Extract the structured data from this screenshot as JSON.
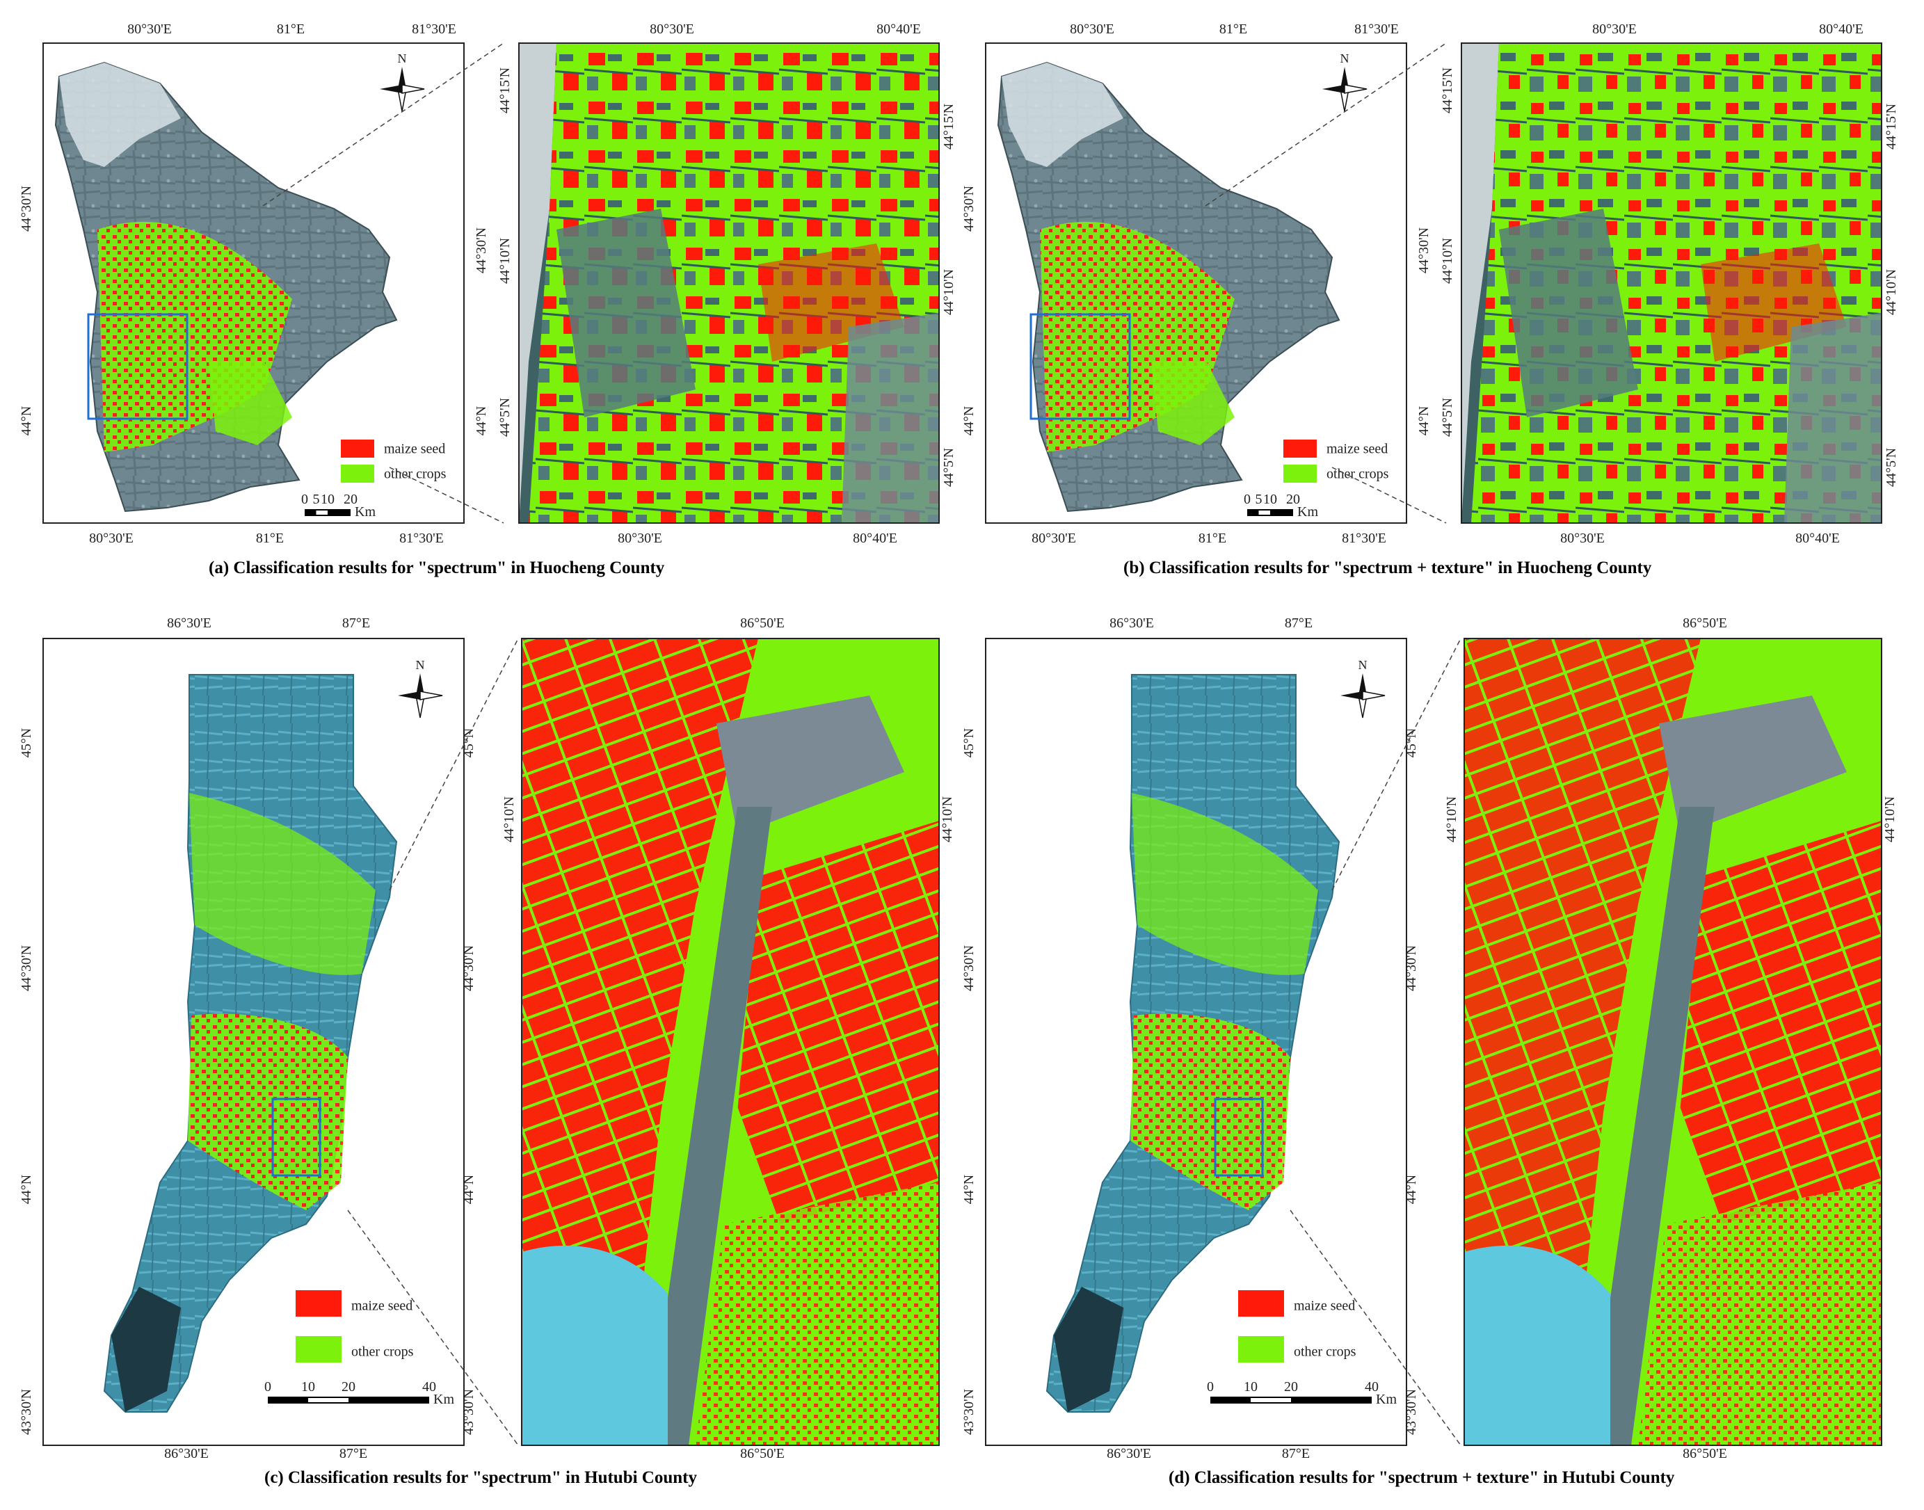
{
  "legend": {
    "maize_seed": "maize seed",
    "other_crops": "other crops"
  },
  "colors": {
    "maize": "#ff1a0a",
    "other": "#7cf20c"
  },
  "north_label": "N",
  "panels": [
    {
      "id": "a",
      "caption": "(a) Classification results for \"spectrum\" in Huocheng County",
      "overview": {
        "top_ticks": [
          "80°30'E",
          "81°E",
          "81°30'E"
        ],
        "bottom_ticks": [
          "80°30'E",
          "81°E",
          "81°30'E"
        ],
        "left_ticks": [
          "44°30'N",
          "44°N"
        ],
        "right_ticks": [
          "44°30'N",
          "44°N"
        ],
        "scale_ticks": [
          "0",
          "5",
          "10",
          "20"
        ],
        "scale_unit": "Km"
      },
      "detail": {
        "top_ticks": [
          "80°30'E",
          "80°40'E"
        ],
        "bottom_ticks": [
          "80°30'E",
          "80°40'E"
        ],
        "left_ticks": [
          "44°15'N",
          "44°10'N",
          "44°5'N"
        ],
        "right_ticks": [
          "44°15'N",
          "44°10'N",
          "44°5'N"
        ]
      }
    },
    {
      "id": "b",
      "caption": "(b) Classification results for \"spectrum + texture\" in Huocheng County",
      "overview": {
        "top_ticks": [
          "80°30'E",
          "81°E",
          "81°30'E"
        ],
        "bottom_ticks": [
          "80°30'E",
          "81°E",
          "81°30'E"
        ],
        "left_ticks": [
          "44°30'N",
          "44°N"
        ],
        "right_ticks": [
          "44°30'N",
          "44°N"
        ],
        "scale_ticks": [
          "0",
          "5",
          "10",
          "20"
        ],
        "scale_unit": "Km"
      },
      "detail": {
        "top_ticks": [
          "80°30'E",
          "80°40'E"
        ],
        "bottom_ticks": [
          "80°30'E",
          "80°40'E"
        ],
        "left_ticks": [
          "44°15'N",
          "44°10'N",
          "44°5'N"
        ],
        "right_ticks": [
          "44°15'N",
          "44°10'N",
          "44°5'N"
        ]
      }
    },
    {
      "id": "c",
      "caption": "(c) Classification results for \"spectrum\" in Hutubi County",
      "overview": {
        "top_ticks": [
          "86°30'E",
          "87°E"
        ],
        "bottom_ticks": [
          "86°30'E",
          "87°E"
        ],
        "left_ticks": [
          "45°N",
          "44°30'N",
          "44°N",
          "43°30'N"
        ],
        "right_ticks": [
          "45°N",
          "44°30'N",
          "44°N",
          "43°30'N"
        ],
        "scale_ticks": [
          "0",
          "10",
          "20",
          "40"
        ],
        "scale_unit": "Km"
      },
      "detail": {
        "top_ticks": [
          "86°50'E"
        ],
        "bottom_ticks": [
          "86°50'E"
        ],
        "left_ticks": [
          "44°10'N"
        ],
        "right_ticks": [
          "44°10'N"
        ]
      }
    },
    {
      "id": "d",
      "caption": "(d) Classification results for \"spectrum + texture\" in Hutubi County",
      "overview": {
        "top_ticks": [
          "86°30'E",
          "87°E"
        ],
        "bottom_ticks": [
          "86°30'E",
          "87°E"
        ],
        "left_ticks": [
          "45°N",
          "44°30'N",
          "44°N",
          "43°30'N"
        ],
        "right_ticks": [
          "45°N",
          "44°30'N",
          "44°N",
          "43°30'N"
        ],
        "scale_ticks": [
          "0",
          "10",
          "20",
          "40"
        ],
        "scale_unit": "Km"
      },
      "detail": {
        "top_ticks": [
          "86°50'E"
        ],
        "bottom_ticks": [
          "86°50'E"
        ],
        "left_ticks": [
          "44°10'N"
        ],
        "right_ticks": [
          "44°10'N"
        ]
      }
    }
  ]
}
